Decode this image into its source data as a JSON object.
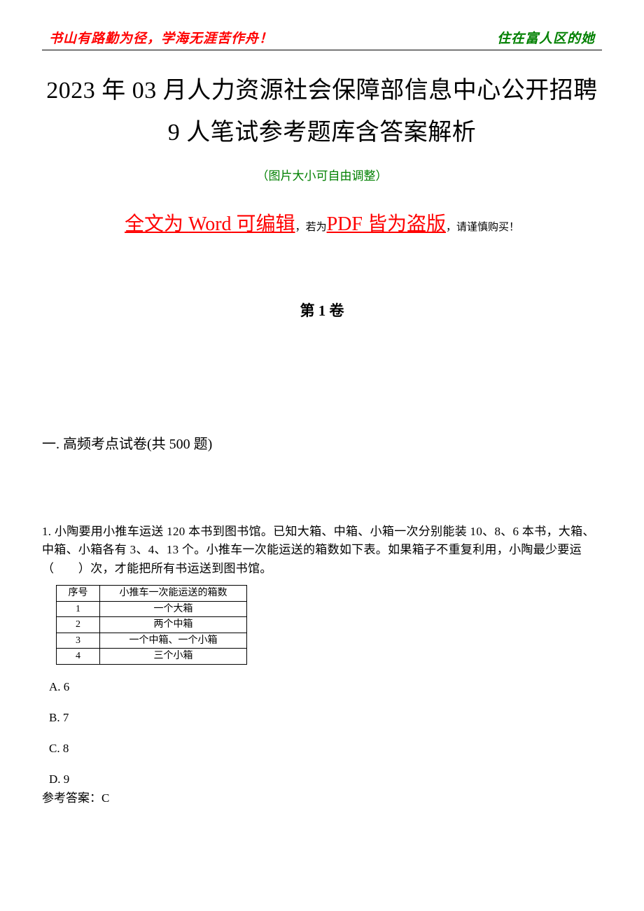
{
  "header": {
    "left": "书山有路勤为径，学海无涯苦作舟！",
    "right": "住在富人区的她"
  },
  "title": "2023 年 03 月人力资源社会保障部信息中心公开招聘 9 人笔试参考题库含答案解析",
  "subtitleNote": "（图片大小可自由调整）",
  "warning": {
    "p1_red": "全文为 ",
    "p1_red_en": "Word",
    "p1_red_tail": " 可编辑",
    "mid_black": "，若为",
    "p2_red_en": "PDF",
    "p2_red_tail": " 皆为盗版",
    "tail_black": "，请谨慎购买！"
  },
  "volumeLabel": "第 1 卷",
  "sectionHeading": "一. 高频考点试卷(共 500 题)",
  "question1": {
    "stem": "1. 小陶要用小推车运送 120 本书到图书馆。已知大箱、中箱、小箱一次分别能装 10、8、6 本书，大箱、中箱、小箱各有 3、4、13 个。小推车一次能运送的箱数如下表。如果箱子不重复利用，小陶最少要运（　　）次，才能把所有书运送到图书馆。",
    "table": {
      "headers": [
        "序号",
        "小推车一次能运送的箱数"
      ],
      "rows": [
        [
          "1",
          "一个大箱"
        ],
        [
          "2",
          "两个中箱"
        ],
        [
          "3",
          "一个中箱、一个小箱"
        ],
        [
          "4",
          "三个小箱"
        ]
      ]
    },
    "options": {
      "A": "A. 6",
      "B": "B. 7",
      "C": "C. 8",
      "D": "D. 9"
    },
    "answerLabel": "参考答案：",
    "answerValue": "C"
  },
  "styles": {
    "pageWidth": 920,
    "pageHeight": 1302,
    "background": "#ffffff",
    "headerLeftColor": "#ff0000",
    "headerRightColor": "#008000",
    "ruleColor": "#000000",
    "titleFontSize": 34,
    "subtitleColor": "#008000",
    "warningRedColor": "#ff0000",
    "bodyTextColor": "#000000",
    "tableBorderColor": "#000000"
  }
}
